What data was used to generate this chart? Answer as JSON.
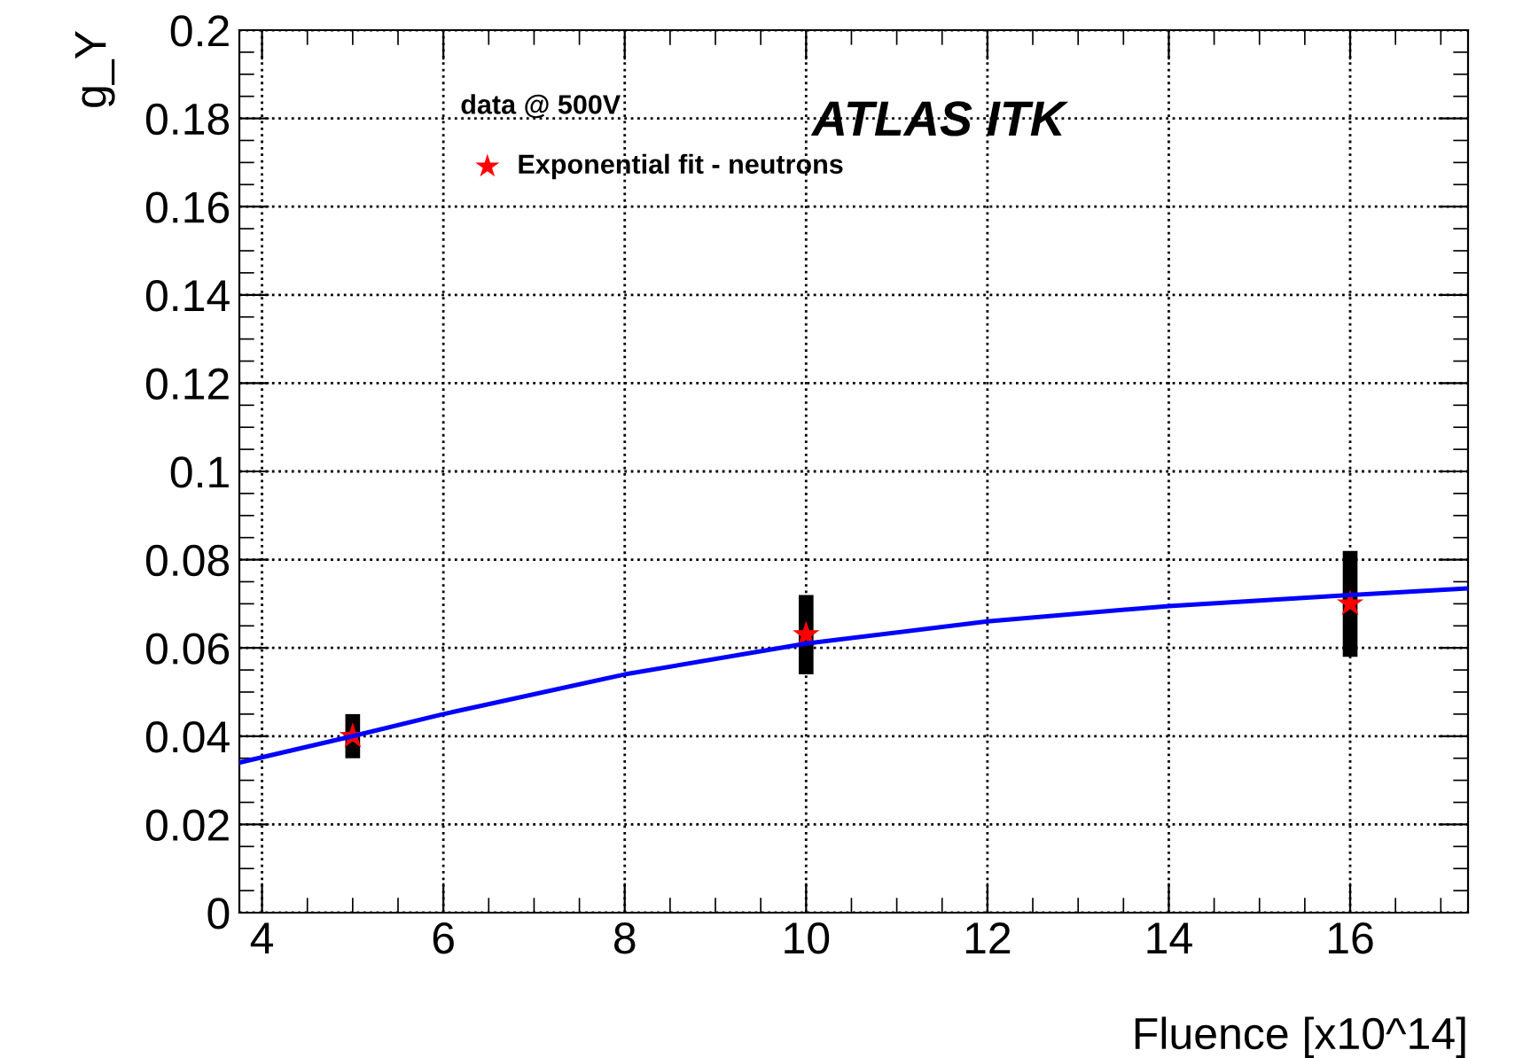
{
  "chart_data": {
    "type": "scatter",
    "xlabel": "Fluence [x10^14]",
    "ylabel": "g_Y",
    "legend_title": "data @ 500V",
    "legend": "top left",
    "grid": true,
    "marker": "star",
    "xlim": [
      3.75,
      17.3
    ],
    "xticks": [
      4,
      6,
      8,
      10,
      12,
      14,
      16
    ],
    "ylim": [
      0,
      0.2
    ],
    "yticks": [
      0,
      0.02,
      0.04,
      0.06,
      0.08,
      0.1,
      0.12,
      0.14,
      0.16,
      0.18,
      0.2
    ],
    "annotations": [
      "ATLAS ITK"
    ],
    "series": [
      {
        "name": "Exponential fit - neutrons",
        "color": "#ff0000",
        "x": [
          5,
          10,
          16
        ],
        "values": [
          0.04,
          0.063,
          0.07
        ],
        "errors": [
          0.005,
          0.009,
          0.012
        ]
      },
      {
        "type": "line",
        "color": "#0000ff",
        "marker": "none",
        "line_style": "solid",
        "x": [
          3.75,
          5,
          6,
          8,
          10,
          12,
          14,
          16,
          17.3
        ],
        "values": [
          0.034,
          0.04,
          0.045,
          0.054,
          0.061,
          0.066,
          0.0695,
          0.072,
          0.0735
        ]
      }
    ]
  }
}
